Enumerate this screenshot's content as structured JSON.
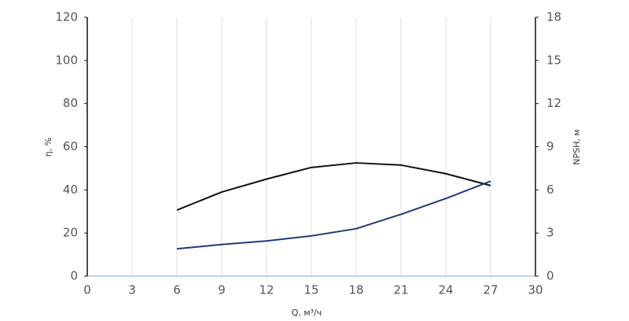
{
  "chart_data": {
    "type": "line",
    "x_label": "Q, м³/ч",
    "y_label": "η, %",
    "y2_label": "NPSH, м",
    "x": [
      6,
      9,
      12,
      15,
      18,
      21,
      24,
      27
    ],
    "series": [
      {
        "color": "#111111",
        "values": [
          30.6,
          39,
          45,
          50.4,
          52.5,
          51.5,
          47.5,
          42
        ]
      },
      {
        "color": "#1f3a78",
        "axis": "y2",
        "values": [
          1.9,
          2.2,
          2.45,
          2.8,
          3.3,
          4.3,
          5.4,
          6.6
        ]
      }
    ],
    "xlim": [
      0,
      30
    ],
    "xticks": [
      0,
      3,
      6,
      9,
      12,
      15,
      18,
      21,
      24,
      27,
      30
    ],
    "ylim": [
      0,
      120
    ],
    "yticks": [
      0,
      20,
      40,
      60,
      80,
      100,
      120
    ],
    "y2lim": [
      0,
      18
    ],
    "y2ticks": [
      0,
      3,
      6,
      9,
      12,
      15,
      18
    ],
    "grid": true
  }
}
